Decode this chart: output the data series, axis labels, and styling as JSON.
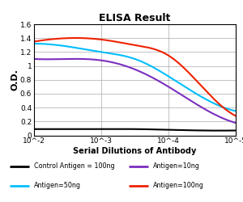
{
  "title": "ELISA Result",
  "ylabel": "O.D.",
  "xlabel": "Serial Dilutions of Antibody",
  "ylim": [
    0,
    1.6
  ],
  "yticks": [
    0,
    0.2,
    0.4,
    0.6,
    0.8,
    1.0,
    1.2,
    1.4,
    1.6
  ],
  "ytick_labels": [
    "0",
    "0.2",
    "0.4",
    "0.6",
    "0.8",
    "1",
    "1.2",
    "1.4",
    "1.6"
  ],
  "xtick_positions": [
    0,
    1,
    2,
    3
  ],
  "xtick_labels": [
    "10^-2",
    "10^-3",
    "10^-4",
    "10^-5"
  ],
  "lines": [
    {
      "label": "Control Antigen=100ng",
      "color": "#000000",
      "points_x": [
        0,
        0.5,
        1.0,
        1.5,
        2.0,
        2.5,
        3.0
      ],
      "points_y": [
        0.09,
        0.09,
        0.09,
        0.09,
        0.08,
        0.07,
        0.07
      ]
    },
    {
      "label": "Antigen=10ng",
      "color": "#7B2FBE",
      "points_x": [
        0,
        0.5,
        1.0,
        1.5,
        2.0,
        2.5,
        3.0
      ],
      "points_y": [
        1.1,
        1.1,
        1.08,
        0.95,
        0.7,
        0.4,
        0.18
      ]
    },
    {
      "label": "Antigen=50ng",
      "color": "#00BFFF",
      "points_x": [
        0,
        0.5,
        1.0,
        1.5,
        2.0,
        2.5,
        3.0
      ],
      "points_y": [
        1.32,
        1.28,
        1.2,
        1.1,
        0.85,
        0.55,
        0.35
      ]
    },
    {
      "label": "Antigen=100ng",
      "color": "#EE2200",
      "points_x": [
        0,
        0.5,
        1.0,
        1.5,
        2.0,
        2.5,
        3.0
      ],
      "points_y": [
        1.35,
        1.4,
        1.38,
        1.3,
        1.15,
        0.7,
        0.28
      ]
    }
  ],
  "legend_items": [
    {
      "label": "Control Antigen = 100ng",
      "color": "#000000"
    },
    {
      "label": "Antigen=10ng",
      "color": "#7B2FBE"
    },
    {
      "label": "Antigen=50ng",
      "color": "#00BFFF"
    },
    {
      "label": "Antigen=100ng",
      "color": "#EE2200"
    }
  ],
  "background_color": "#ffffff",
  "grid_color": "#aaaaaa"
}
